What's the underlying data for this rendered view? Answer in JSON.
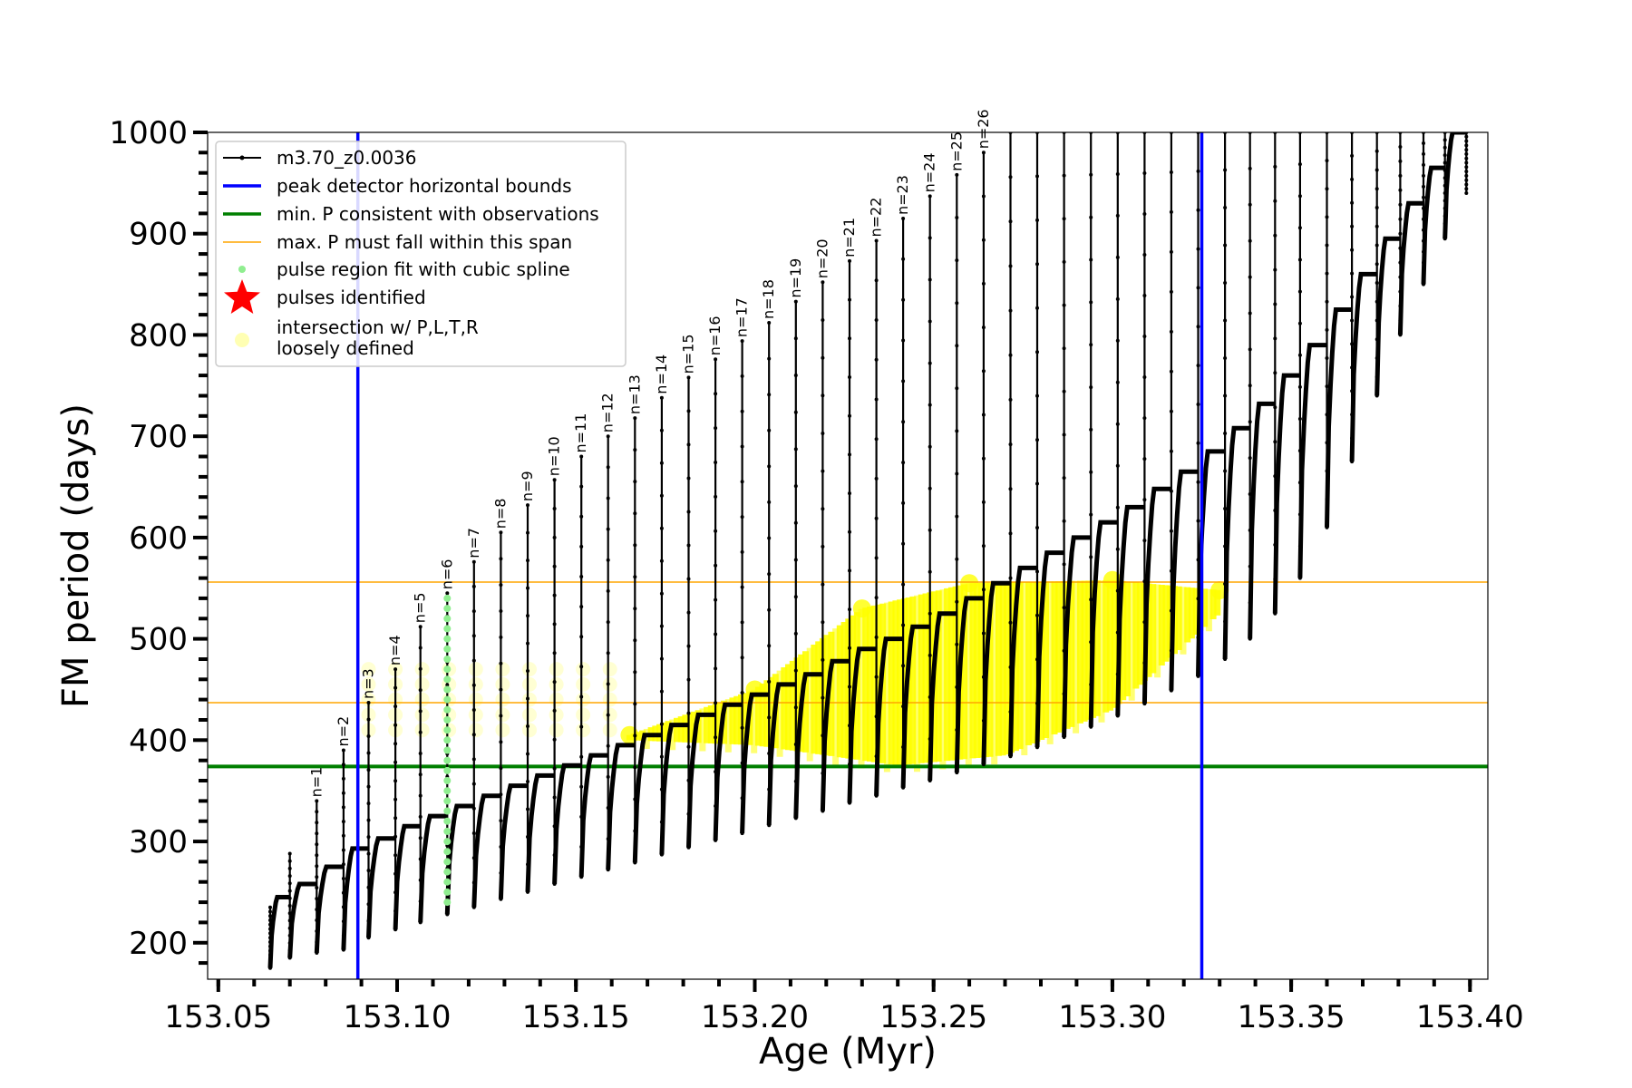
{
  "chart_data": {
    "type": "line",
    "xlabel": "Age (Myr)",
    "ylabel": "FM period (days)",
    "xlim": [
      153.047,
      153.405
    ],
    "ylim": [
      164,
      1000
    ],
    "x_ticks": [
      153.05,
      153.1,
      153.15,
      153.2,
      153.25,
      153.3,
      153.35,
      153.4
    ],
    "x_tick_labels": [
      "153.05",
      "153.10",
      "153.15",
      "153.20",
      "153.25",
      "153.30",
      "153.35",
      "153.40"
    ],
    "y_ticks": [
      200,
      300,
      400,
      500,
      600,
      700,
      800,
      900,
      1000
    ],
    "y_tick_labels": [
      "200",
      "300",
      "400",
      "500",
      "600",
      "700",
      "800",
      "900",
      "1000"
    ],
    "legend_position": "upper-left",
    "legend": [
      {
        "label": "m3.70_z0.0036",
        "kind": "line-dots",
        "color": "#000000"
      },
      {
        "label": "peak detector horizontal bounds",
        "kind": "line",
        "color": "#0000ff"
      },
      {
        "label": "min. P consistent with observations",
        "kind": "line",
        "color": "#007f00"
      },
      {
        "label": "max. P must fall within this span",
        "kind": "line",
        "color": "#ffa500"
      },
      {
        "label": "pulse region fit with cubic spline",
        "kind": "dot",
        "color": "#90ee90"
      },
      {
        "label": "pulses identified",
        "kind": "star",
        "color": "#ff0000"
      },
      {
        "label": "intersection w/ P,L,T,R",
        "label2": "loosely defined",
        "kind": "big-dot",
        "color": "#ffff80"
      }
    ],
    "vertical_lines": [
      {
        "series": "peak detector horizontal bounds",
        "x": 153.089,
        "color": "#0000ff"
      },
      {
        "series": "peak detector horizontal bounds",
        "x": 153.325,
        "color": "#0000ff"
      }
    ],
    "horizontal_lines": [
      {
        "series": "min. P consistent with observations",
        "y": 374,
        "color": "#007f00"
      },
      {
        "series": "max. P must fall within this span",
        "y": 437,
        "color": "#ffa500"
      },
      {
        "series": "max. P must fall within this span",
        "y": 556,
        "color": "#ffa500"
      }
    ],
    "series": [
      {
        "name": "m3.70_z0.0036",
        "color": "#000000",
        "pulses": [
          {
            "x": 153.0645,
            "trough": 175,
            "peak": 235,
            "label": ""
          },
          {
            "x": 153.07,
            "trough": 185,
            "peak": 288,
            "label": ""
          },
          {
            "x": 153.0775,
            "trough": 190,
            "peak": 340,
            "label": "n=1"
          },
          {
            "x": 153.085,
            "trough": 193,
            "peak": 390,
            "label": "n=2"
          },
          {
            "x": 153.092,
            "trough": 205,
            "peak": 437,
            "label": "n=3"
          },
          {
            "x": 153.0995,
            "trough": 213,
            "peak": 470,
            "label": "n=4"
          },
          {
            "x": 153.1065,
            "trough": 220,
            "peak": 512,
            "label": "n=5"
          },
          {
            "x": 153.114,
            "trough": 228,
            "peak": 545,
            "label": "n=6"
          },
          {
            "x": 153.1215,
            "trough": 235,
            "peak": 576,
            "label": "n=7"
          },
          {
            "x": 153.129,
            "trough": 243,
            "peak": 605,
            "label": "n=8"
          },
          {
            "x": 153.1365,
            "trough": 250,
            "peak": 632,
            "label": "n=9"
          },
          {
            "x": 153.144,
            "trough": 258,
            "peak": 657,
            "label": "n=10"
          },
          {
            "x": 153.1515,
            "trough": 265,
            "peak": 680,
            "label": "n=11"
          },
          {
            "x": 153.159,
            "trough": 272,
            "peak": 700,
            "label": "n=12"
          },
          {
            "x": 153.1665,
            "trough": 279,
            "peak": 718,
            "label": "n=13"
          },
          {
            "x": 153.174,
            "trough": 287,
            "peak": 738,
            "label": "n=14"
          },
          {
            "x": 153.1815,
            "trough": 294,
            "peak": 758,
            "label": "n=15"
          },
          {
            "x": 153.189,
            "trough": 301,
            "peak": 776,
            "label": "n=16"
          },
          {
            "x": 153.1965,
            "trough": 308,
            "peak": 794,
            "label": "n=17"
          },
          {
            "x": 153.204,
            "trough": 316,
            "peak": 812,
            "label": "n=18"
          },
          {
            "x": 153.2115,
            "trough": 323,
            "peak": 833,
            "label": "n=19"
          },
          {
            "x": 153.219,
            "trough": 330,
            "peak": 852,
            "label": "n=20"
          },
          {
            "x": 153.2265,
            "trough": 338,
            "peak": 873,
            "label": "n=21"
          },
          {
            "x": 153.234,
            "trough": 345,
            "peak": 893,
            "label": "n=22"
          },
          {
            "x": 153.2415,
            "trough": 353,
            "peak": 915,
            "label": "n=23"
          },
          {
            "x": 153.249,
            "trough": 360,
            "peak": 937,
            "label": "n=24"
          },
          {
            "x": 153.2565,
            "trough": 368,
            "peak": 958,
            "label": "n=25"
          },
          {
            "x": 153.264,
            "trough": 376,
            "peak": 980,
            "label": "n=26"
          },
          {
            "x": 153.2715,
            "trough": 384,
            "peak": 1000,
            "label": ""
          },
          {
            "x": 153.279,
            "trough": 393,
            "peak": 1000,
            "label": ""
          },
          {
            "x": 153.2865,
            "trough": 403,
            "peak": 1000,
            "label": ""
          },
          {
            "x": 153.294,
            "trough": 413,
            "peak": 1000,
            "label": ""
          },
          {
            "x": 153.3015,
            "trough": 424,
            "peak": 1000,
            "label": ""
          },
          {
            "x": 153.309,
            "trough": 436,
            "peak": 1000,
            "label": ""
          },
          {
            "x": 153.3165,
            "trough": 449,
            "peak": 1000,
            "label": ""
          },
          {
            "x": 153.324,
            "trough": 463,
            "peak": 1000,
            "label": ""
          },
          {
            "x": 153.3315,
            "trough": 480,
            "peak": 1000,
            "label": ""
          },
          {
            "x": 153.3385,
            "trough": 500,
            "peak": 1000,
            "label": ""
          },
          {
            "x": 153.3455,
            "trough": 525,
            "peak": 1000,
            "label": ""
          },
          {
            "x": 153.3525,
            "trough": 560,
            "peak": 1000,
            "label": ""
          },
          {
            "x": 153.36,
            "trough": 610,
            "peak": 1000,
            "label": ""
          },
          {
            "x": 153.367,
            "trough": 675,
            "peak": 1000,
            "label": ""
          },
          {
            "x": 153.374,
            "trough": 740,
            "peak": 1000,
            "label": ""
          },
          {
            "x": 153.3805,
            "trough": 800,
            "peak": 1000,
            "label": ""
          },
          {
            "x": 153.387,
            "trough": 850,
            "peak": 1000,
            "label": ""
          },
          {
            "x": 153.393,
            "trough": 895,
            "peak": 1000,
            "label": ""
          },
          {
            "x": 153.399,
            "trough": 940,
            "peak": 1000,
            "label": ""
          }
        ],
        "baseline": [
          [
            153.064,
            190
          ],
          [
            153.07,
            245
          ],
          [
            153.0775,
            258
          ],
          [
            153.085,
            275
          ],
          [
            153.092,
            293
          ],
          [
            153.0995,
            303
          ],
          [
            153.1065,
            315
          ],
          [
            153.114,
            325
          ],
          [
            153.1215,
            335
          ],
          [
            153.129,
            345
          ],
          [
            153.1365,
            355
          ],
          [
            153.144,
            365
          ],
          [
            153.1515,
            375
          ],
          [
            153.159,
            385
          ],
          [
            153.1665,
            395
          ],
          [
            153.174,
            405
          ],
          [
            153.1815,
            415
          ],
          [
            153.189,
            425
          ],
          [
            153.1965,
            435
          ],
          [
            153.204,
            445
          ],
          [
            153.2115,
            455
          ],
          [
            153.219,
            465
          ],
          [
            153.2265,
            478
          ],
          [
            153.234,
            490
          ],
          [
            153.2415,
            500
          ],
          [
            153.249,
            512
          ],
          [
            153.2565,
            525
          ],
          [
            153.264,
            540
          ],
          [
            153.2715,
            555
          ],
          [
            153.279,
            570
          ],
          [
            153.2865,
            585
          ],
          [
            153.294,
            600
          ],
          [
            153.3015,
            615
          ],
          [
            153.309,
            630
          ],
          [
            153.3165,
            648
          ],
          [
            153.324,
            665
          ],
          [
            153.3315,
            685
          ],
          [
            153.3385,
            708
          ],
          [
            153.3455,
            732
          ],
          [
            153.3525,
            760
          ],
          [
            153.36,
            790
          ],
          [
            153.367,
            825
          ],
          [
            153.374,
            860
          ],
          [
            153.3805,
            895
          ],
          [
            153.387,
            930
          ],
          [
            153.393,
            965
          ],
          [
            153.399,
            1000
          ]
        ]
      },
      {
        "name": "pulse region fit with cubic spline",
        "color": "#90ee90",
        "x": 153.114,
        "y_range": [
          240,
          545
        ]
      },
      {
        "name": "intersection w/ P,L,T,R",
        "color": "#ffff00",
        "band_lower": [
          [
            153.165,
            400
          ],
          [
            153.2,
            395
          ],
          [
            153.24,
            375
          ],
          [
            153.27,
            385
          ],
          [
            153.3,
            430
          ],
          [
            153.33,
            525
          ]
        ],
        "band_upper": [
          [
            153.165,
            405
          ],
          [
            153.2,
            450
          ],
          [
            153.23,
            530
          ],
          [
            153.26,
            555
          ],
          [
            153.3,
            558
          ],
          [
            153.33,
            548
          ]
        ],
        "faint_x_range": [
          153.089,
          153.165
        ],
        "faint_y_range": [
          410,
          470
        ]
      }
    ]
  }
}
